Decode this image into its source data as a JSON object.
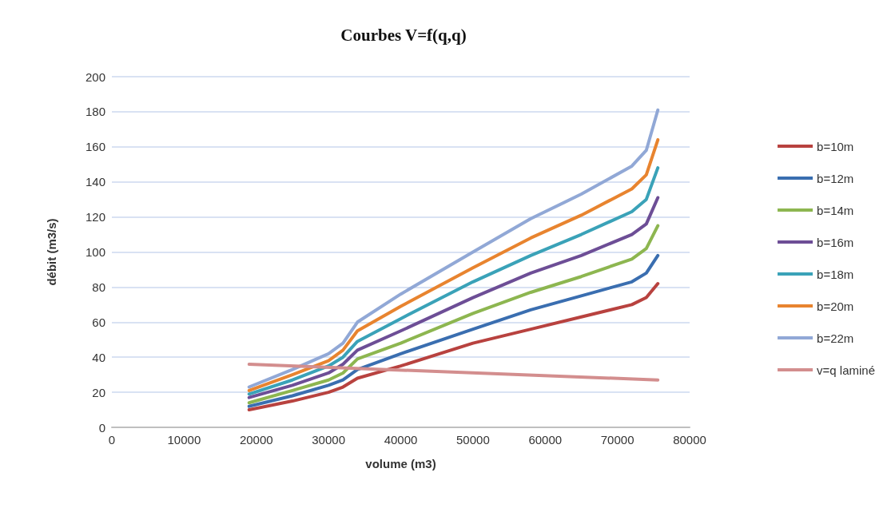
{
  "chart_data": {
    "type": "line",
    "title": "Courbes V=f(q,q)",
    "xlabel": "volume (m3)",
    "ylabel": "débit (m3/s)",
    "x": [
      19000,
      25000,
      30000,
      32000,
      34000,
      40000,
      50000,
      58000,
      65000,
      72000,
      74000,
      75600
    ],
    "xlim": [
      0,
      80000
    ],
    "xticks": [
      0,
      10000,
      20000,
      30000,
      40000,
      50000,
      60000,
      70000,
      80000
    ],
    "ylim": [
      0,
      200
    ],
    "yticks": [
      0,
      20,
      40,
      60,
      80,
      100,
      120,
      140,
      160,
      180,
      200
    ],
    "grid": "y",
    "legend": "right",
    "marker": "none",
    "line_style": "solid",
    "series": [
      {
        "name": "b=10m",
        "color": "#b8423f",
        "values": [
          10,
          15,
          20,
          23,
          28,
          35,
          48,
          56,
          63,
          70,
          74,
          82
        ]
      },
      {
        "name": "b=12m",
        "color": "#3a6eb0",
        "values": [
          12,
          18,
          24,
          27,
          33,
          42,
          56,
          67,
          75,
          83,
          88,
          98
        ]
      },
      {
        "name": "b=14m",
        "color": "#8db650",
        "values": [
          14,
          21,
          27,
          31,
          39,
          48,
          65,
          77,
          86,
          96,
          102,
          115
        ]
      },
      {
        "name": "b=16m",
        "color": "#6d4e96",
        "values": [
          17,
          24,
          31,
          36,
          44,
          55,
          74,
          88,
          98,
          110,
          116,
          131
        ]
      },
      {
        "name": "b=18m",
        "color": "#3aa2b8",
        "values": [
          19,
          27,
          35,
          40,
          49,
          62,
          83,
          98,
          110,
          123,
          130,
          148
        ]
      },
      {
        "name": "b=20m",
        "color": "#e8842f",
        "values": [
          21,
          30,
          38,
          44,
          55,
          69,
          91,
          108,
          121,
          136,
          144,
          164
        ]
      },
      {
        "name": "b=22m",
        "color": "#91a8d6",
        "values": [
          23,
          33,
          42,
          48,
          60,
          76,
          100,
          119,
          133,
          149,
          158,
          181
        ]
      },
      {
        "name": "v=q laminé",
        "color": "#d38e8e",
        "x": [
          19000,
          75600
        ],
        "values": [
          36,
          27
        ]
      }
    ]
  }
}
